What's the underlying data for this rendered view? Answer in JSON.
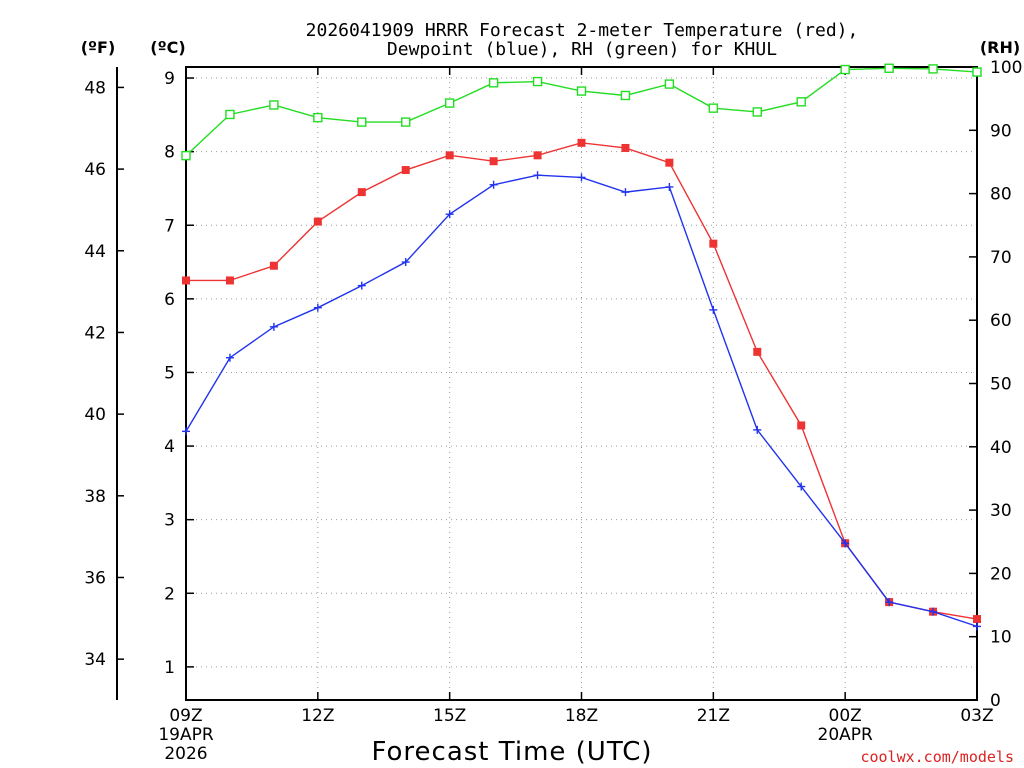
{
  "chart_data": {
    "type": "line",
    "title": {
      "line1": "2026041909 HRRR Forecast 2-meter Temperature (red),",
      "line2": "Dewpoint (blue), RH (green) for KHUL"
    },
    "xlabel": "Forecast Time (UTC)",
    "axis_units": {
      "fahrenheit": "(ºF)",
      "celsius": "(ºC)",
      "rh": "(RH)"
    },
    "x_hours": [
      0,
      1,
      2,
      3,
      4,
      5,
      6,
      7,
      8,
      9,
      10,
      11,
      12,
      13,
      14,
      15,
      16,
      17,
      18
    ],
    "xlim": [
      0,
      18
    ],
    "x_ticks": [
      {
        "hour": 0,
        "label": "09Z",
        "date": "19APR",
        "year": "2026"
      },
      {
        "hour": 3,
        "label": "12Z",
        "date": "",
        "year": ""
      },
      {
        "hour": 6,
        "label": "15Z",
        "date": "",
        "year": ""
      },
      {
        "hour": 9,
        "label": "18Z",
        "date": "",
        "year": ""
      },
      {
        "hour": 12,
        "label": "21Z",
        "date": "",
        "year": ""
      },
      {
        "hour": 15,
        "label": "00Z",
        "date": "20APR",
        "year": ""
      },
      {
        "hour": 18,
        "label": "03Z",
        "date": "",
        "year": ""
      }
    ],
    "celsius_axis": {
      "ylim": [
        0.55,
        9.15
      ],
      "ticks": [
        1,
        2,
        3,
        4,
        5,
        6,
        7,
        8,
        9
      ]
    },
    "fahrenheit_axis": {
      "ylim": [
        33.0,
        48.5
      ],
      "ticks": [
        34,
        36,
        38,
        40,
        42,
        44,
        46,
        48
      ]
    },
    "rh_axis": {
      "ylim": [
        0,
        100
      ],
      "ticks": [
        0,
        10,
        20,
        30,
        40,
        50,
        60,
        70,
        80,
        90,
        100
      ]
    },
    "series": [
      {
        "name": "Temperature",
        "unit": "C",
        "color": "#ee3333",
        "marker": "filled-square",
        "values": [
          6.25,
          6.25,
          6.45,
          7.05,
          7.45,
          7.75,
          7.95,
          7.87,
          7.95,
          8.12,
          8.05,
          7.85,
          6.75,
          5.28,
          4.28,
          2.68,
          1.88,
          1.75,
          1.65
        ]
      },
      {
        "name": "Dewpoint",
        "unit": "C",
        "color": "#2233ee",
        "marker": "plus",
        "values": [
          4.2,
          5.2,
          5.62,
          5.88,
          6.18,
          6.5,
          7.15,
          7.55,
          7.68,
          7.65,
          7.45,
          7.52,
          5.85,
          4.22,
          3.45,
          2.68,
          1.88,
          1.75,
          1.55
        ]
      },
      {
        "name": "RH",
        "unit": "%",
        "color": "#22dd22",
        "marker": "open-square",
        "values": [
          86,
          92.5,
          94,
          92,
          91.3,
          91.3,
          94.3,
          97.5,
          97.7,
          96.2,
          95.5,
          97.3,
          93.5,
          92.9,
          94.5,
          99.6,
          99.8,
          99.7,
          99.2
        ]
      }
    ],
    "grid": true,
    "credit": "coolwx.com/models"
  }
}
